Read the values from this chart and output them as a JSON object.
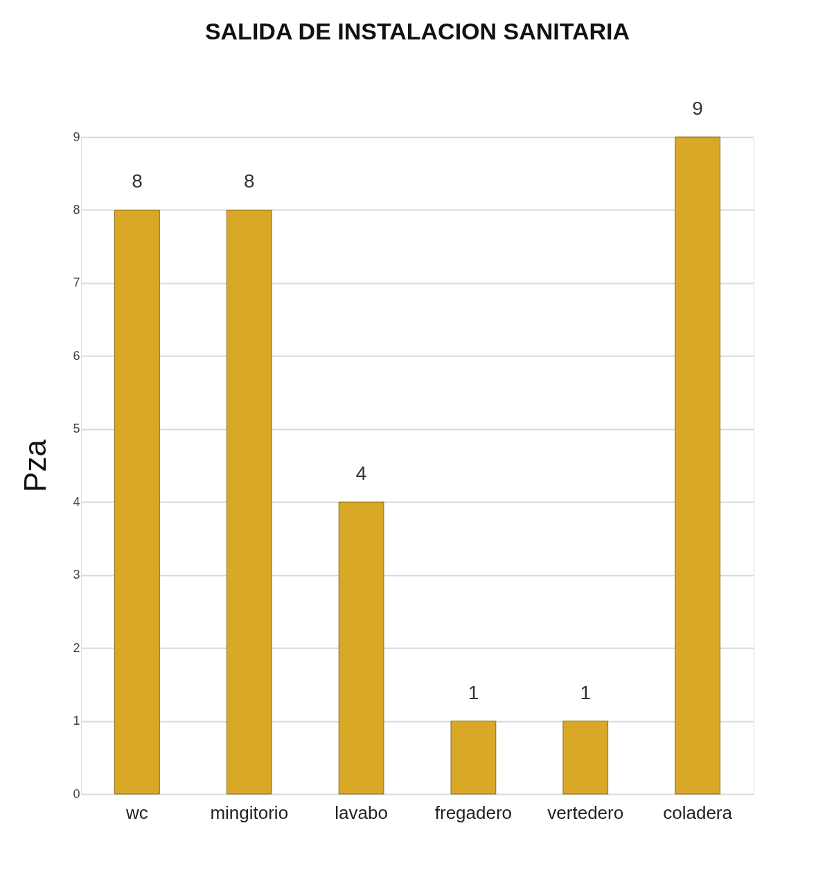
{
  "chart_data": {
    "type": "bar",
    "title": "SALIDA DE INSTALACION SANITARIA",
    "ylabel": "Pza",
    "categories": [
      "wc",
      "mingitorio",
      "lavabo",
      "fregadero",
      "vertedero",
      "coladera"
    ],
    "values": [
      8,
      8,
      4,
      1,
      1,
      9
    ],
    "color": "#d9a826",
    "ylim": [
      0,
      9
    ],
    "yticks": [
      0,
      1,
      2,
      3,
      4,
      5,
      6,
      7,
      8,
      9
    ],
    "grid": "y",
    "data_labels": true
  }
}
